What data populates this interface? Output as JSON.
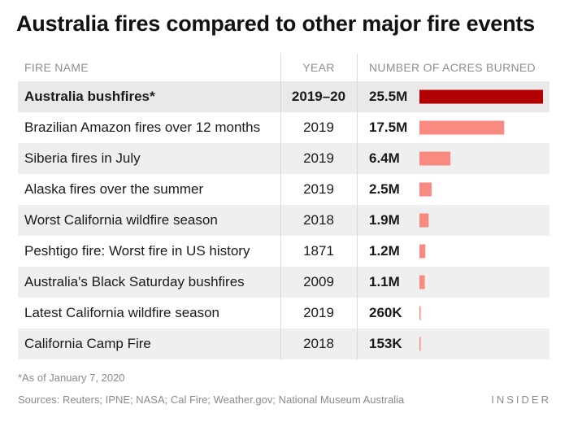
{
  "title": "Australia fires compared to other major fire events",
  "headers": {
    "name": "FIRE NAME",
    "year": "YEAR",
    "acres": "NUMBER OF ACRES BURNED"
  },
  "colors": {
    "highlight_bar": "#b30000",
    "bar": "#f98a82"
  },
  "chart_data": {
    "type": "bar",
    "orientation": "horizontal",
    "title": "Australia fires compared to other major fire events",
    "value_unit": "acres burned",
    "categories": [
      "Australia bushfires*",
      "Brazilian Amazon fires over 12 months",
      "Siberia fires in July",
      "Alaska fires over the summer",
      "Worst California wildfire season",
      "Peshtigo fire: Worst fire in US history",
      "Australia's Black Saturday bushfires",
      "Latest California wildfire season",
      "California Camp Fire"
    ],
    "years": [
      "2019–20",
      "2019",
      "2019",
      "2019",
      "2018",
      "1871",
      "2009",
      "2019",
      "2018"
    ],
    "value_labels": [
      "25.5M",
      "17.5M",
      "6.4M",
      "2.5M",
      "1.9M",
      "1.2M",
      "1.1M",
      "260K",
      "153K"
    ],
    "values": [
      25500000,
      17500000,
      6400000,
      2500000,
      1900000,
      1200000,
      1100000,
      260000,
      153000
    ],
    "highlight_index": 0,
    "xlim": [
      0,
      25500000
    ]
  },
  "footnote": "*As of January 7, 2020",
  "sources_label": "Sources:",
  "sources_text": "Reuters; IPNE; NASA; Cal Fire; Weather.gov; National Museum Australia",
  "brand": "INSIDER"
}
